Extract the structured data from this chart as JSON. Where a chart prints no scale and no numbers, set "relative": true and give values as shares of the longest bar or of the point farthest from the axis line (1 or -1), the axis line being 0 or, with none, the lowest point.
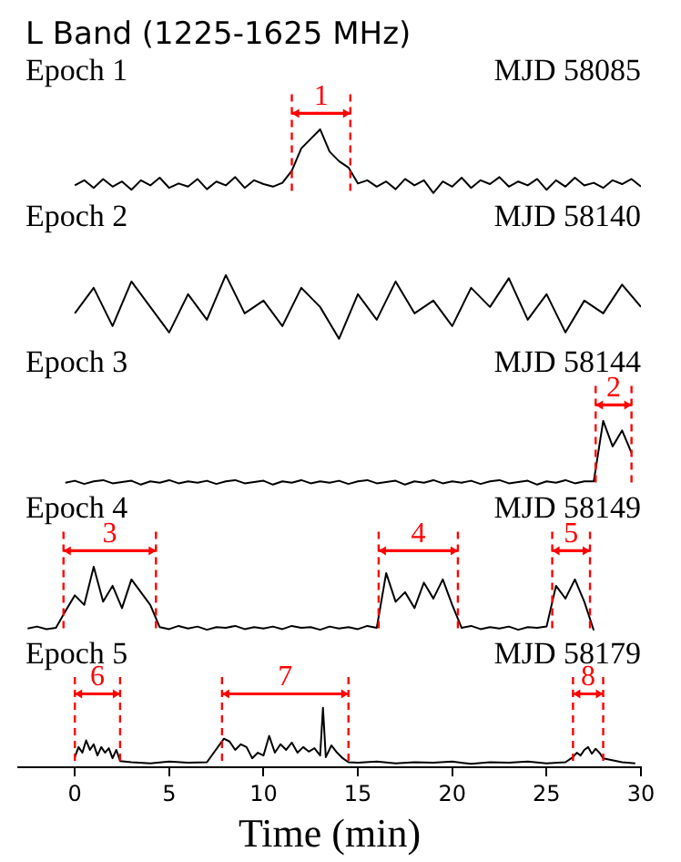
{
  "chart_data": [
    {
      "type": "line",
      "title": "L Band (1225-1625 MHz)",
      "subtitle": "Epoch 1",
      "annotations": [
        "MJD 58085",
        "1"
      ],
      "relative": true,
      "marker": "none",
      "color": "#000000",
      "grid": false,
      "legend": false,
      "tick_labels": false,
      "xlim": [
        -3,
        30
      ],
      "x": [
        0,
        0.5,
        1,
        1.5,
        2,
        2.5,
        3,
        3.5,
        4,
        4.5,
        5,
        5.5,
        6,
        6.5,
        7,
        7.5,
        8,
        8.5,
        9,
        9.5,
        10,
        10.5,
        11,
        11.5,
        12,
        12.5,
        13,
        13.5,
        14,
        14.5,
        15,
        15.5,
        16,
        16.5,
        17,
        17.5,
        18,
        18.5,
        19,
        19.5,
        20,
        20.5,
        21,
        21.5,
        22,
        22.5,
        23,
        23.5,
        24,
        24.5,
        25,
        25.5,
        26,
        26.5,
        27,
        27.5,
        28,
        28.5,
        29,
        29.5,
        30
      ],
      "values": [
        0.12,
        0.2,
        0.08,
        0.22,
        0.1,
        0.18,
        0.05,
        0.2,
        0.12,
        0.24,
        0.08,
        0.15,
        0.1,
        0.22,
        0.06,
        0.18,
        0.12,
        0.25,
        0.08,
        0.2,
        0.14,
        0.1,
        0.16,
        0.35,
        0.7,
        0.85,
        1,
        0.65,
        0.5,
        0.4,
        0.15,
        0.2,
        0.1,
        0.18,
        0.06,
        0.22,
        0.12,
        0.2,
        0,
        0.18,
        0.1,
        0.24,
        0.08,
        0.2,
        0.14,
        0.25,
        0.1,
        0.18,
        0.12,
        0.22,
        0.05,
        0.2,
        0.1,
        0.24,
        0.12,
        0.16,
        0.08,
        0.2,
        0.14,
        0.22,
        0.1
      ],
      "ref_lines": [
        {
          "axis": "x",
          "value": 11.5,
          "color": "#ff0000",
          "line_style": "dashed"
        },
        {
          "axis": "x",
          "value": 14.6,
          "color": "#ff0000",
          "line_style": "dashed"
        }
      ]
    },
    {
      "type": "line",
      "subtitle": "Epoch 2",
      "annotations": [
        "MJD 58140"
      ],
      "relative": true,
      "marker": "none",
      "color": "#000000",
      "grid": false,
      "legend": false,
      "tick_labels": false,
      "xlim": [
        -3,
        30
      ],
      "x": [
        0,
        1,
        2,
        3,
        4,
        5,
        6,
        7,
        8,
        9,
        10,
        11,
        12,
        13,
        14,
        15,
        16,
        17,
        18,
        19,
        20,
        21,
        22,
        23,
        24,
        25,
        26,
        27,
        28,
        29,
        30
      ],
      "values": [
        0.4,
        0.8,
        0.2,
        0.9,
        0.5,
        0.1,
        0.7,
        0.3,
        1,
        0.4,
        0.6,
        0.2,
        0.8,
        0.5,
        0,
        0.7,
        0.3,
        0.9,
        0.4,
        0.6,
        0.2,
        0.8,
        0.5,
        0.95,
        0.3,
        0.7,
        0.1,
        0.6,
        0.4,
        0.85,
        0.5
      ]
    },
    {
      "type": "line",
      "subtitle": "Epoch 3",
      "annotations": [
        "MJD 58144",
        "2"
      ],
      "relative": true,
      "marker": "none",
      "color": "#000000",
      "grid": false,
      "legend": false,
      "tick_labels": false,
      "xlim": [
        -3,
        30
      ],
      "x": [
        -0.5,
        0,
        0.5,
        1,
        1.5,
        2,
        2.5,
        3,
        3.5,
        4,
        4.5,
        5,
        5.5,
        6,
        6.5,
        7,
        7.5,
        8,
        8.5,
        9,
        9.5,
        10,
        10.5,
        11,
        11.5,
        12,
        12.5,
        13,
        13.5,
        14,
        14.5,
        15,
        15.5,
        16,
        16.5,
        17,
        17.5,
        18,
        18.5,
        19,
        19.5,
        20,
        20.5,
        21,
        21.5,
        22,
        22.5,
        23,
        23.5,
        24,
        24.5,
        25,
        25.5,
        26,
        26.5,
        27,
        27.5,
        28,
        28.5,
        29,
        29.5
      ],
      "values": [
        0.03,
        0.06,
        0.01,
        0.05,
        0.07,
        0.02,
        0.04,
        0.06,
        0,
        0.05,
        0.03,
        0.07,
        0.02,
        0.05,
        0.03,
        0.06,
        0.01,
        0.05,
        0.07,
        0.02,
        0.04,
        0.06,
        0,
        0.05,
        0.03,
        0.07,
        0.02,
        0.05,
        0.03,
        0.06,
        0.01,
        0.05,
        0.07,
        0.02,
        0.04,
        0.06,
        0,
        0.05,
        0.03,
        0.07,
        0.02,
        0.05,
        0.03,
        0.06,
        0.01,
        0.05,
        0.07,
        0.02,
        0.04,
        0.06,
        0,
        0.05,
        0.03,
        0.07,
        0.02,
        0.05,
        0.05,
        1,
        0.6,
        0.85,
        0.5
      ],
      "ref_lines": [
        {
          "axis": "x",
          "value": 27.6,
          "color": "#ff0000",
          "line_style": "dashed"
        },
        {
          "axis": "x",
          "value": 29.5,
          "color": "#ff0000",
          "line_style": "dashed"
        }
      ]
    },
    {
      "type": "line",
      "subtitle": "Epoch 4",
      "annotations": [
        "MJD 58149",
        "3",
        "4",
        "5"
      ],
      "relative": true,
      "marker": "none",
      "color": "#000000",
      "grid": false,
      "legend": false,
      "tick_labels": false,
      "xlim": [
        -3,
        30
      ],
      "x": [
        -2.5,
        -2,
        -1.5,
        -1,
        -0.5,
        0,
        0.5,
        1,
        1.5,
        2,
        2.5,
        3,
        3.5,
        4,
        4.5,
        5,
        5.5,
        6,
        6.5,
        7,
        7.5,
        8,
        8.5,
        9,
        9.5,
        10,
        10.5,
        11,
        11.5,
        12,
        12.5,
        13,
        13.5,
        14,
        14.5,
        15,
        15.5,
        16,
        16.5,
        17,
        17.5,
        18,
        18.5,
        19,
        19.5,
        20,
        20.5,
        21,
        21.5,
        22,
        22.5,
        23,
        23.5,
        24,
        24.5,
        25,
        25.5,
        26,
        26.5,
        27,
        27.5
      ],
      "values": [
        0.03,
        0.06,
        0.02,
        0.04,
        0.3,
        0.55,
        0.4,
        1,
        0.45,
        0.7,
        0.35,
        0.8,
        0.6,
        0.4,
        0.05,
        0.02,
        0.07,
        0.03,
        0.06,
        0.01,
        0.05,
        0.04,
        0.07,
        0.02,
        0.05,
        0.03,
        0.06,
        0.02,
        0.07,
        0.04,
        0.05,
        0.01,
        0.06,
        0.03,
        0.05,
        0.02,
        0.07,
        0.04,
        0.9,
        0.45,
        0.6,
        0.35,
        0.75,
        0.5,
        0.8,
        0.4,
        0.04,
        0.07,
        0.02,
        0.05,
        0.03,
        0.06,
        0.01,
        0.05,
        0.04,
        0.06,
        0.7,
        0.5,
        0.8,
        0.45,
        0
      ],
      "ref_lines": [
        {
          "axis": "x",
          "value": -0.6,
          "color": "#ff0000",
          "line_style": "dashed"
        },
        {
          "axis": "x",
          "value": 4.3,
          "color": "#ff0000",
          "line_style": "dashed"
        },
        {
          "axis": "x",
          "value": 16.1,
          "color": "#ff0000",
          "line_style": "dashed"
        },
        {
          "axis": "x",
          "value": 20.3,
          "color": "#ff0000",
          "line_style": "dashed"
        },
        {
          "axis": "x",
          "value": 25.3,
          "color": "#ff0000",
          "line_style": "dashed"
        },
        {
          "axis": "x",
          "value": 27.3,
          "color": "#ff0000",
          "line_style": "dashed"
        }
      ]
    },
    {
      "type": "line",
      "subtitle": "Epoch 5",
      "annotations": [
        "MJD 58179",
        "6",
        "7",
        "8"
      ],
      "xlabel": "Time (min)",
      "relative": true,
      "marker": "none",
      "color": "#000000",
      "grid": false,
      "legend": false,
      "xlim": [
        -3,
        30
      ],
      "xticks": [
        0,
        5,
        10,
        15,
        20,
        25,
        30
      ],
      "x": [
        0,
        0.2,
        0.4,
        0.6,
        0.8,
        1,
        1.2,
        1.4,
        1.6,
        1.8,
        2,
        2.2,
        2.4,
        3,
        4,
        5,
        6,
        7,
        7.9,
        8.2,
        8.5,
        8.8,
        9.1,
        9.4,
        9.7,
        10,
        10.3,
        10.6,
        10.9,
        11.2,
        11.5,
        11.8,
        12.1,
        12.4,
        12.7,
        13,
        13.15,
        13.3,
        13.6,
        13.9,
        14.2,
        14.5,
        15,
        16,
        17,
        18,
        19,
        20,
        21,
        22,
        23,
        24,
        25,
        26,
        26.4,
        26.6,
        26.8,
        27,
        27.2,
        27.4,
        27.6,
        27.8,
        28,
        29,
        29.7
      ],
      "values": [
        0.12,
        0.3,
        0.2,
        0.42,
        0.25,
        0.35,
        0.15,
        0.3,
        0.2,
        0.28,
        0.1,
        0.25,
        0.05,
        0.03,
        0.01,
        0.04,
        0.02,
        0.03,
        0.45,
        0.4,
        0.25,
        0.35,
        0.3,
        0.1,
        0.2,
        0.15,
        0.5,
        0.2,
        0.35,
        0.25,
        0.38,
        0.2,
        0.3,
        0.22,
        0.28,
        0.15,
        1,
        0.12,
        0.33,
        0.2,
        0.1,
        0.03,
        0.02,
        0.04,
        0.01,
        0.03,
        0.02,
        0.04,
        0,
        0.03,
        0.02,
        0.04,
        0.01,
        0.03,
        0.12,
        0.2,
        0.15,
        0.25,
        0.3,
        0.18,
        0.27,
        0.2,
        0.1,
        0.03,
        0.01
      ],
      "ref_lines": [
        {
          "axis": "x",
          "value": 0,
          "color": "#ff0000",
          "line_style": "dashed"
        },
        {
          "axis": "x",
          "value": 2.4,
          "color": "#ff0000",
          "line_style": "dashed"
        },
        {
          "axis": "x",
          "value": 7.8,
          "color": "#ff0000",
          "line_style": "dashed"
        },
        {
          "axis": "x",
          "value": 14.5,
          "color": "#ff0000",
          "line_style": "dashed"
        },
        {
          "axis": "x",
          "value": 26.4,
          "color": "#ff0000",
          "line_style": "dashed"
        },
        {
          "axis": "x",
          "value": 28,
          "color": "#ff0000",
          "line_style": "dashed"
        }
      ]
    }
  ]
}
